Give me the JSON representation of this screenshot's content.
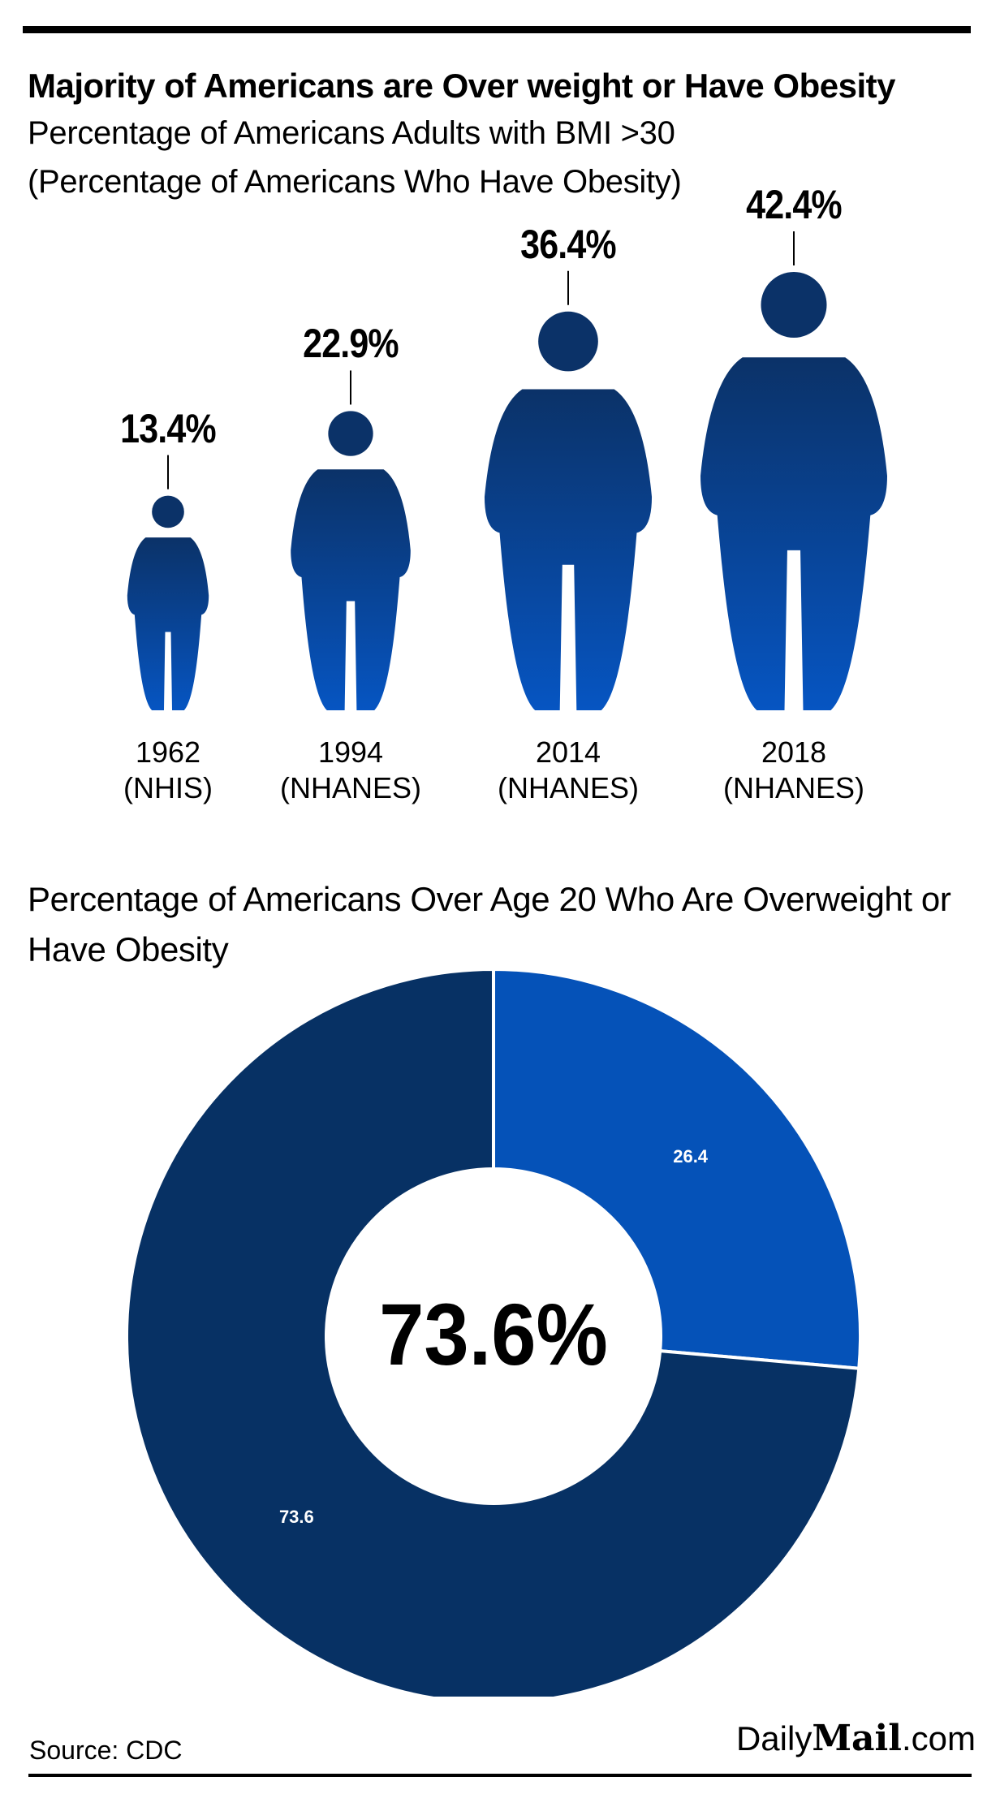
{
  "header": {
    "title": "Majority of Americans are Over weight or Have Obesity",
    "subtitle_line1": "Percentage of Americans Adults with BMI >30",
    "subtitle_line2": "(Percentage of Americans Who Have Obesity)"
  },
  "section2": {
    "title": "Percentage of Americans Over Age 20 Who Are Overweight or Have Obesity",
    "center_label": "73.6%"
  },
  "footer": {
    "source": "Source: CDC",
    "logo_prefix": "Daily",
    "logo_brand": "Mail",
    "logo_suffix": ".com"
  },
  "colors": {
    "figure_top": "#0b3268",
    "figure_bottom": "#0655c2",
    "donut_dark": "#073164",
    "donut_light": "#0552b8",
    "text": "#000000"
  },
  "chart_data": [
    {
      "type": "bar",
      "encoding": "pictograph",
      "title": "Percentage of Americans Adults with BMI >30",
      "categories": [
        "1962 (NHIS)",
        "1994 (NHANES)",
        "2014 (NHANES)",
        "2018 (NHANES)"
      ],
      "category_lines": [
        [
          "1962",
          "(NHIS)"
        ],
        [
          "1994",
          "(NHANES)"
        ],
        [
          "2014",
          "(NHANES)"
        ],
        [
          "2018",
          "(NHANES)"
        ]
      ],
      "values": [
        13.4,
        22.9,
        36.4,
        42.4
      ],
      "labels": [
        "13.4%",
        "22.9%",
        "36.4%",
        "42.4%"
      ],
      "unit": "%"
    },
    {
      "type": "pie",
      "donut": true,
      "title": "Percentage of Americans Over Age 20 Who Are Overweight or Have Obesity",
      "values": [
        26.4,
        73.6
      ],
      "labels": [
        "26.4",
        "73.6"
      ],
      "center_label": "73.6%"
    }
  ]
}
